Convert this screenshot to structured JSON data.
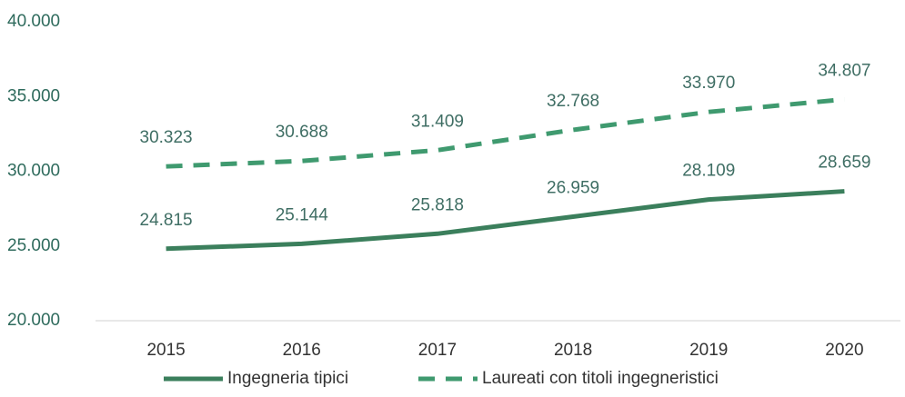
{
  "chart_data": {
    "type": "line",
    "categories": [
      "2015",
      "2016",
      "2017",
      "2018",
      "2019",
      "2020"
    ],
    "series": [
      {
        "name": "Ingegneria tipici",
        "color": "#3b7f5c",
        "dash": false,
        "values": [
          24815,
          25144,
          25818,
          26959,
          28109,
          28659
        ],
        "value_labels": [
          "24.815",
          "25.144",
          "25.818",
          "26.959",
          "28.109",
          "28.659"
        ]
      },
      {
        "name": "Laureati con titoli ingegneristici",
        "color": "#3f9a6f",
        "dash": true,
        "values": [
          30323,
          30688,
          31409,
          32768,
          33970,
          34807
        ],
        "value_labels": [
          "30.323",
          "30.688",
          "31.409",
          "32.768",
          "33.970",
          "34.807"
        ]
      }
    ],
    "ylim": [
      20000,
      40000
    ],
    "yticks": [
      {
        "value": 20000,
        "label": "20.000"
      },
      {
        "value": 25000,
        "label": "25.000"
      },
      {
        "value": 30000,
        "label": "30.000"
      },
      {
        "value": 35000,
        "label": "35.000"
      },
      {
        "value": 40000,
        "label": "40.000"
      }
    ]
  }
}
